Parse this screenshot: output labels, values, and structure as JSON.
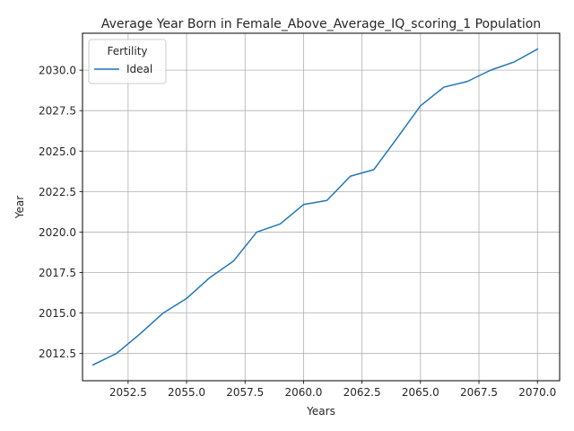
{
  "chart_data": {
    "type": "line",
    "title": "Average Year Born in Female_Above_Average_IQ_scoring_1 Population",
    "xlabel": "Years",
    "ylabel": "Year",
    "xlim": [
      2050.55,
      2070.95
    ],
    "ylim": [
      2010.82,
      2032.28
    ],
    "x_ticks": [
      2052.5,
      2055.0,
      2057.5,
      2060.0,
      2062.5,
      2065.0,
      2067.5,
      2070.0
    ],
    "y_ticks": [
      2012.5,
      2015.0,
      2017.5,
      2020.0,
      2022.5,
      2025.0,
      2027.5,
      2030.0
    ],
    "grid": true,
    "legend": {
      "title": "Fertility",
      "placement": "top-left"
    },
    "series": [
      {
        "name": "Ideal",
        "color": "#1f77b4",
        "x": [
          2051,
          2052,
          2053,
          2054,
          2055,
          2056,
          2057,
          2058,
          2059,
          2060,
          2061,
          2062,
          2063,
          2064,
          2065,
          2066,
          2067,
          2068,
          2069,
          2070
        ],
        "y": [
          2011.8,
          2012.5,
          2013.7,
          2015.0,
          2015.9,
          2017.2,
          2018.2,
          2020.0,
          2020.5,
          2021.7,
          2021.95,
          2023.45,
          2023.85,
          2025.8,
          2027.8,
          2028.95,
          2029.3,
          2030.0,
          2030.5,
          2031.3
        ]
      }
    ]
  }
}
